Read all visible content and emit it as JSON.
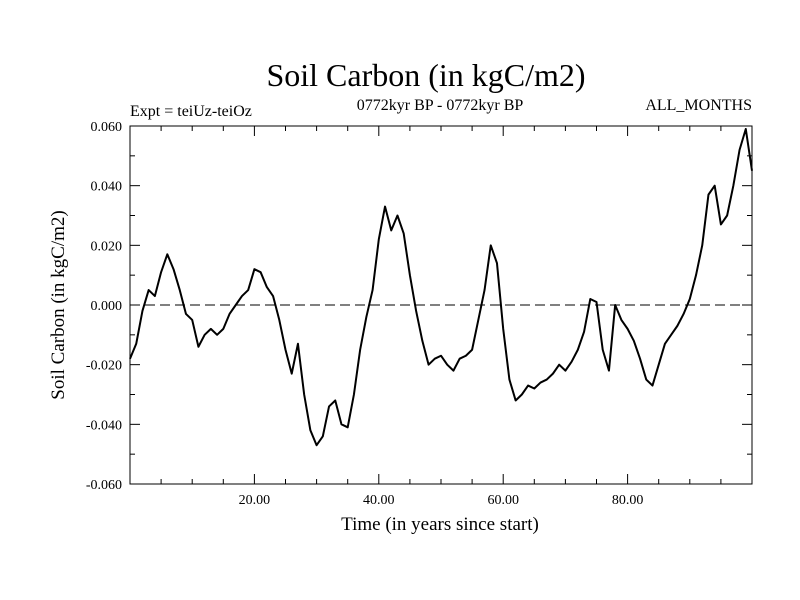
{
  "chart_data": {
    "type": "line",
    "title": "Soil Carbon (in kgC/m2)",
    "subtitle": "0772kyr BP - 0772kyr BP",
    "left_note": "Expt = teiUz-teiOz",
    "right_note": "ALL_MONTHS",
    "xlabel": "Time (in years since start)",
    "ylabel": "Soil Carbon (in kgC/m2)",
    "xlim": [
      0,
      100
    ],
    "ylim": [
      -0.06,
      0.06
    ],
    "xticks": [
      20,
      40,
      60,
      80
    ],
    "xtick_labels": [
      "20.00",
      "40.00",
      "60.00",
      "80.00"
    ],
    "yticks": [
      -0.06,
      -0.04,
      -0.02,
      0.0,
      0.02,
      0.04,
      0.06
    ],
    "ytick_labels": [
      "-0.060",
      "-0.040",
      "-0.020",
      "0.000",
      "0.020",
      "0.040",
      "0.060"
    ],
    "reference_line": 0.0,
    "series": [
      {
        "name": "teiUz-teiOz",
        "x": [
          0,
          1,
          2,
          3,
          4,
          5,
          6,
          7,
          8,
          9,
          10,
          11,
          12,
          13,
          14,
          15,
          16,
          17,
          18,
          19,
          20,
          21,
          22,
          23,
          24,
          25,
          26,
          27,
          28,
          29,
          30,
          31,
          32,
          33,
          34,
          35,
          36,
          37,
          38,
          39,
          40,
          41,
          42,
          43,
          44,
          45,
          46,
          47,
          48,
          49,
          50,
          51,
          52,
          53,
          54,
          55,
          56,
          57,
          58,
          59,
          60,
          61,
          62,
          63,
          64,
          65,
          66,
          67,
          68,
          69,
          70,
          71,
          72,
          73,
          74,
          75,
          76,
          77,
          78,
          79,
          80,
          81,
          82,
          83,
          84,
          85,
          86,
          87,
          88,
          89,
          90,
          91,
          92,
          93,
          94,
          95,
          96,
          97,
          98,
          99,
          100
        ],
        "values": [
          -0.018,
          -0.013,
          -0.002,
          0.005,
          0.003,
          0.011,
          0.017,
          0.012,
          0.005,
          -0.003,
          -0.005,
          -0.014,
          -0.01,
          -0.008,
          -0.01,
          -0.008,
          -0.003,
          0.0,
          0.003,
          0.005,
          0.012,
          0.011,
          0.006,
          0.003,
          -0.005,
          -0.015,
          -0.023,
          -0.013,
          -0.03,
          -0.042,
          -0.047,
          -0.044,
          -0.034,
          -0.032,
          -0.04,
          -0.041,
          -0.03,
          -0.015,
          -0.004,
          0.005,
          0.022,
          0.033,
          0.025,
          0.03,
          0.024,
          0.01,
          -0.002,
          -0.012,
          -0.02,
          -0.018,
          -0.017,
          -0.02,
          -0.022,
          -0.018,
          -0.017,
          -0.015,
          -0.005,
          0.005,
          0.02,
          0.014,
          -0.008,
          -0.025,
          -0.032,
          -0.03,
          -0.027,
          -0.028,
          -0.026,
          -0.025,
          -0.023,
          -0.02,
          -0.022,
          -0.019,
          -0.015,
          -0.009,
          0.002,
          0.001,
          -0.015,
          -0.022,
          0.0,
          -0.005,
          -0.008,
          -0.012,
          -0.018,
          -0.025,
          -0.027,
          -0.02,
          -0.013,
          -0.01,
          -0.007,
          -0.003,
          0.002,
          0.01,
          0.02,
          0.037,
          0.04,
          0.027,
          0.03,
          0.04,
          0.052,
          0.059,
          0.045
        ]
      }
    ]
  }
}
